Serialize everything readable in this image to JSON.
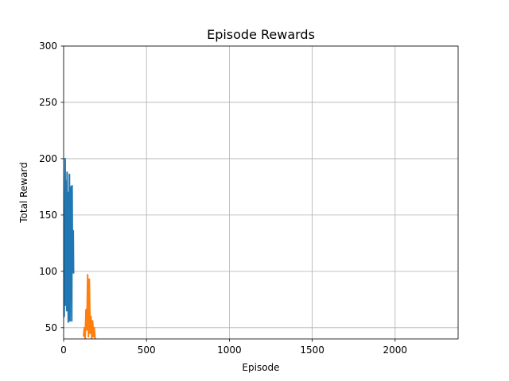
{
  "chart_data": {
    "type": "line",
    "title": "Episode Rewards",
    "xlabel": "Episode",
    "ylabel": "Total Reward",
    "xlim": [
      0,
      2380
    ],
    "ylim": [
      40,
      300
    ],
    "xticks": [
      0,
      500,
      1000,
      1500,
      2000
    ],
    "yticks": [
      50,
      100,
      150,
      200,
      250,
      300
    ],
    "grid": true,
    "series": [
      {
        "color": "#1f77b4",
        "x": [
          0,
          3,
          6,
          9,
          12,
          14,
          16,
          19,
          21,
          24,
          26,
          28,
          30,
          33,
          35,
          38,
          40,
          42,
          44,
          47,
          49,
          51,
          53,
          56,
          58,
          60
        ],
        "y": [
          80,
          60,
          125,
          200,
          70,
          170,
          180,
          65,
          188,
          90,
          145,
          55,
          170,
          110,
          186,
          56,
          160,
          95,
          175,
          100,
          56,
          176,
          120,
          100,
          136,
          98
        ]
      },
      {
        "color": "#ff7f0e",
        "x": [
          120,
          125,
          130,
          135,
          140,
          145,
          150,
          155,
          160,
          165,
          170,
          175,
          180,
          185,
          190
        ],
        "y": [
          42,
          50,
          40,
          66,
          48,
          97,
          42,
          93,
          45,
          60,
          40,
          56,
          42,
          50,
          40
        ]
      }
    ]
  }
}
